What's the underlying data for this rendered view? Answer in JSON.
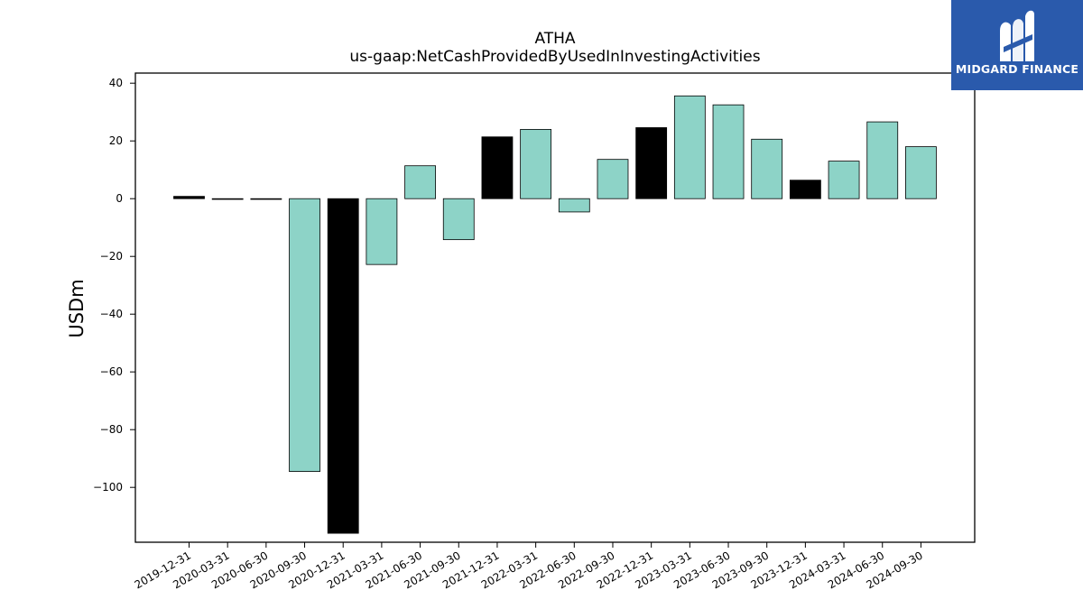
{
  "chart_data": {
    "type": "bar",
    "title": "ATHA",
    "subtitle": "us-gaap:NetCashProvidedByUsedInInvestingActivities",
    "ylabel": "USDm",
    "xlabel": "",
    "ylim": [
      -119,
      43.5
    ],
    "yticks": [
      40,
      20,
      0,
      -20,
      -40,
      -60,
      -80,
      -100
    ],
    "ytick_labels": [
      "40",
      "20",
      "0",
      "−20",
      "−40",
      "−60",
      "−80",
      "−100"
    ],
    "categories": [
      "2019-12-31",
      "2020-03-31",
      "2020-06-30",
      "2020-09-30",
      "2020-12-31",
      "2021-03-31",
      "2021-06-30",
      "2021-09-30",
      "2021-12-31",
      "2022-03-31",
      "2022-06-30",
      "2022-09-30",
      "2022-12-31",
      "2023-03-31",
      "2023-06-30",
      "2023-09-30",
      "2023-12-31",
      "2024-03-31",
      "2024-06-30",
      "2024-09-30"
    ],
    "values": [
      0.8,
      -0.2,
      -0.2,
      -94.5,
      -115.9,
      -22.8,
      11.4,
      -14.2,
      21.4,
      24.0,
      -4.6,
      13.6,
      24.6,
      35.6,
      32.5,
      20.6,
      6.4,
      13.0,
      26.6,
      18.0
    ],
    "bar_colors": [
      "#000000",
      "#000000",
      "#000000",
      "#8dd3c7",
      "#000000",
      "#8dd3c7",
      "#8dd3c7",
      "#8dd3c7",
      "#000000",
      "#8dd3c7",
      "#8dd3c7",
      "#8dd3c7",
      "#000000",
      "#8dd3c7",
      "#8dd3c7",
      "#8dd3c7",
      "#000000",
      "#8dd3c7",
      "#8dd3c7",
      "#8dd3c7"
    ],
    "grid": false,
    "legend": "none"
  },
  "brand": {
    "name": "MIDGARD FINANCE",
    "background": "#2a5aac"
  }
}
